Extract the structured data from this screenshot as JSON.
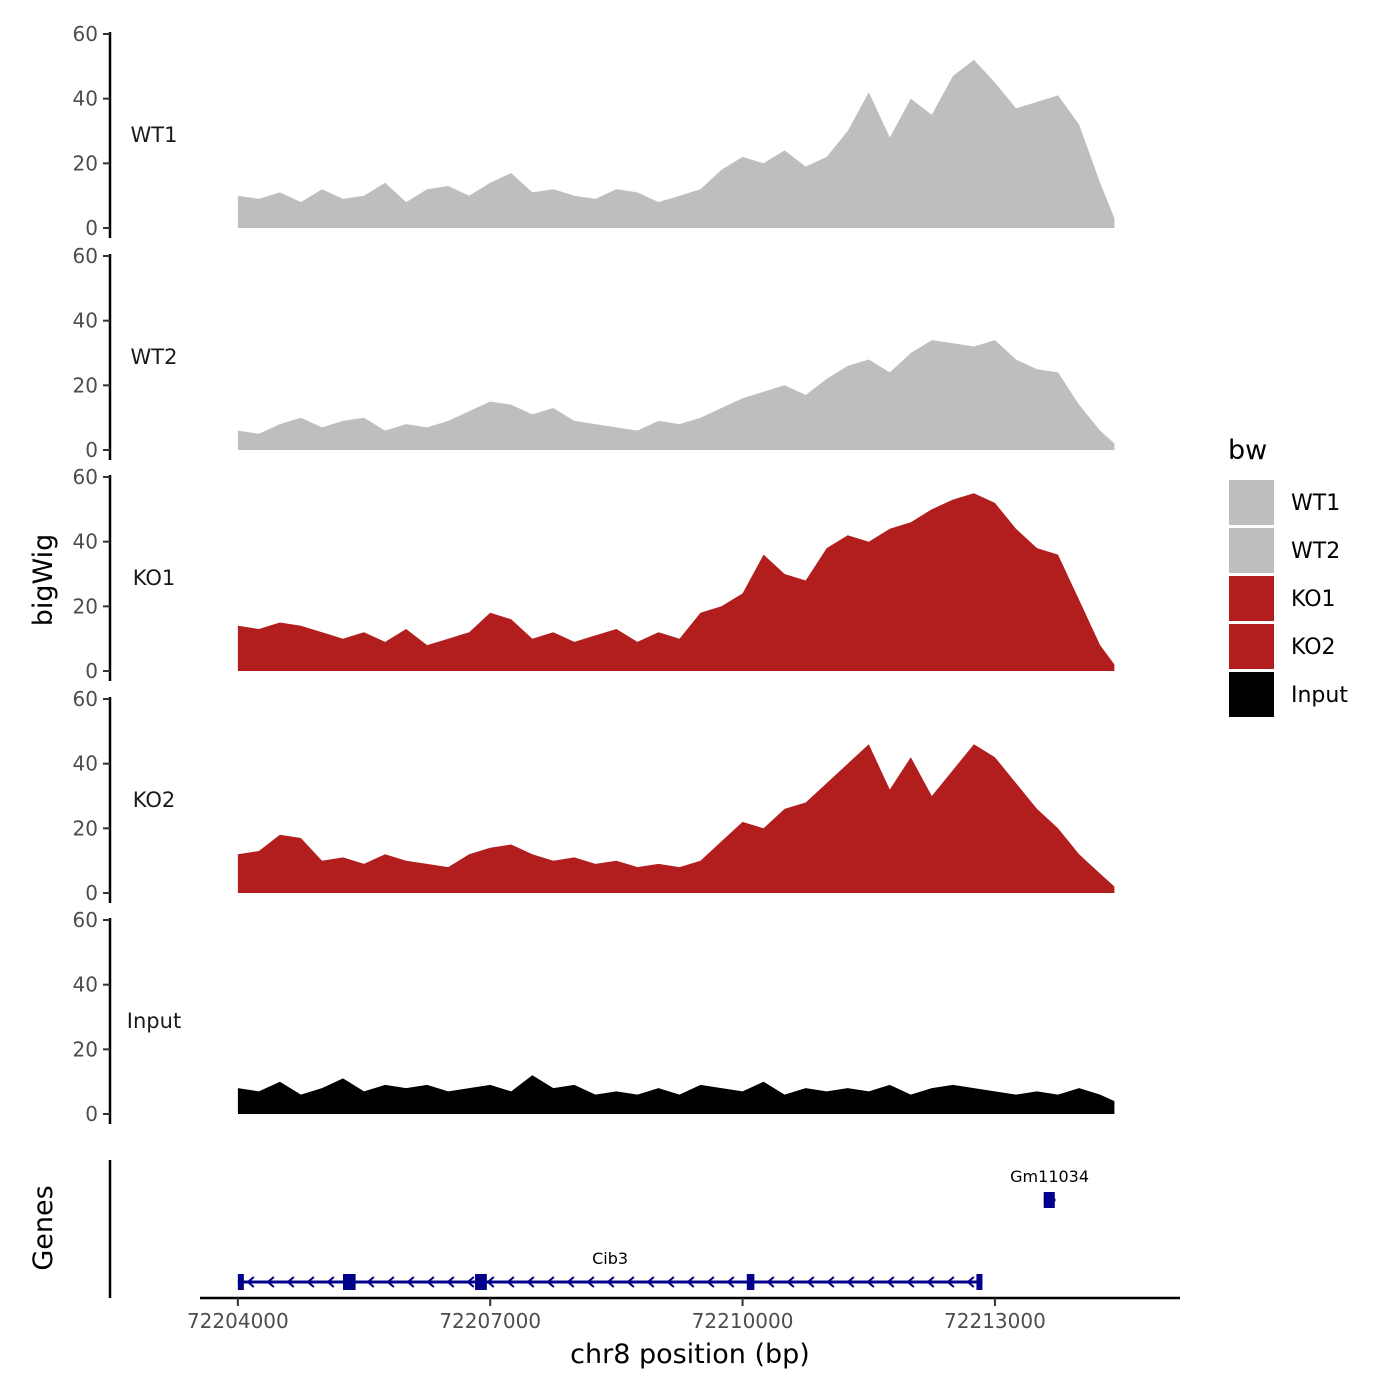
{
  "chart_data": {
    "type": "area",
    "y_axis_title": "bigWig",
    "x_axis_title": "chr8 position (bp)",
    "x_ticks": [
      "72204000",
      "72207000",
      "72210000",
      "72213000"
    ],
    "x_tick_values": [
      72204000,
      72207000,
      72210000,
      72213000
    ],
    "xlim": [
      72203550,
      72215200
    ],
    "ylim": [
      0,
      60
    ],
    "y_ticks": [
      "0",
      "20",
      "40",
      "60"
    ],
    "y_tick_values": [
      0,
      20,
      40,
      60
    ],
    "legend": {
      "title": "bw",
      "position": "right",
      "entries": [
        {
          "label": "WT1",
          "color": "#bebebe"
        },
        {
          "label": "WT2",
          "color": "#bebebe"
        },
        {
          "label": "KO1",
          "color": "#b21e1e"
        },
        {
          "label": "KO2",
          "color": "#b21e1e"
        },
        {
          "label": "Input",
          "color": "#000000"
        }
      ]
    },
    "series": [
      {
        "name": "WT1",
        "color": "#bebebe",
        "x": [
          72204000,
          72204250,
          72204500,
          72204750,
          72205000,
          72205250,
          72205500,
          72205750,
          72206000,
          72206250,
          72206500,
          72206750,
          72207000,
          72207250,
          72207500,
          72207750,
          72208000,
          72208250,
          72208500,
          72208750,
          72209000,
          72209250,
          72209500,
          72209750,
          72210000,
          72210250,
          72210500,
          72210750,
          72211000,
          72211250,
          72211500,
          72211750,
          72212000,
          72212250,
          72212500,
          72212750,
          72213000,
          72213250,
          72213500,
          72213750,
          72214000,
          72214250,
          72214420
        ],
        "y": [
          10,
          9,
          11,
          8,
          12,
          9,
          10,
          14,
          8,
          12,
          13,
          10,
          14,
          17,
          11,
          12,
          10,
          9,
          12,
          11,
          8,
          10,
          12,
          18,
          22,
          20,
          24,
          19,
          22,
          30,
          42,
          28,
          40,
          35,
          47,
          52,
          45,
          37,
          39,
          41,
          32,
          14,
          3
        ]
      },
      {
        "name": "WT2",
        "color": "#bebebe",
        "x": [
          72204000,
          72204250,
          72204500,
          72204750,
          72205000,
          72205250,
          72205500,
          72205750,
          72206000,
          72206250,
          72206500,
          72206750,
          72207000,
          72207250,
          72207500,
          72207750,
          72208000,
          72208250,
          72208500,
          72208750,
          72209000,
          72209250,
          72209500,
          72209750,
          72210000,
          72210250,
          72210500,
          72210750,
          72211000,
          72211250,
          72211500,
          72211750,
          72212000,
          72212250,
          72212500,
          72212750,
          72213000,
          72213250,
          72213500,
          72213750,
          72214000,
          72214250,
          72214420
        ],
        "y": [
          6,
          5,
          8,
          10,
          7,
          9,
          10,
          6,
          8,
          7,
          9,
          12,
          15,
          14,
          11,
          13,
          9,
          8,
          7,
          6,
          9,
          8,
          10,
          13,
          16,
          18,
          20,
          17,
          22,
          26,
          28,
          24,
          30,
          34,
          33,
          32,
          34,
          28,
          25,
          24,
          14,
          6,
          2
        ]
      },
      {
        "name": "KO1",
        "color": "#b21e1e",
        "x": [
          72204000,
          72204250,
          72204500,
          72204750,
          72205000,
          72205250,
          72205500,
          72205750,
          72206000,
          72206250,
          72206500,
          72206750,
          72207000,
          72207250,
          72207500,
          72207750,
          72208000,
          72208250,
          72208500,
          72208750,
          72209000,
          72209250,
          72209500,
          72209750,
          72210000,
          72210250,
          72210500,
          72210750,
          72211000,
          72211250,
          72211500,
          72211750,
          72212000,
          72212250,
          72212500,
          72212750,
          72213000,
          72213250,
          72213500,
          72213750,
          72214000,
          72214250,
          72214420
        ],
        "y": [
          14,
          13,
          15,
          14,
          12,
          10,
          12,
          9,
          13,
          8,
          10,
          12,
          18,
          16,
          10,
          12,
          9,
          11,
          13,
          9,
          12,
          10,
          18,
          20,
          24,
          36,
          30,
          28,
          38,
          42,
          40,
          44,
          46,
          50,
          53,
          55,
          52,
          44,
          38,
          36,
          22,
          8,
          2
        ]
      },
      {
        "name": "KO2",
        "color": "#b21e1e",
        "x": [
          72204000,
          72204250,
          72204500,
          72204750,
          72205000,
          72205250,
          72205500,
          72205750,
          72206000,
          72206250,
          72206500,
          72206750,
          72207000,
          72207250,
          72207500,
          72207750,
          72208000,
          72208250,
          72208500,
          72208750,
          72209000,
          72209250,
          72209500,
          72209750,
          72210000,
          72210250,
          72210500,
          72210750,
          72211000,
          72211250,
          72211500,
          72211750,
          72212000,
          72212250,
          72212500,
          72212750,
          72213000,
          72213250,
          72213500,
          72213750,
          72214000,
          72214250,
          72214420
        ],
        "y": [
          12,
          13,
          18,
          17,
          10,
          11,
          9,
          12,
          10,
          9,
          8,
          12,
          14,
          15,
          12,
          10,
          11,
          9,
          10,
          8,
          9,
          8,
          10,
          16,
          22,
          20,
          26,
          28,
          34,
          40,
          46,
          32,
          42,
          30,
          38,
          46,
          42,
          34,
          26,
          20,
          12,
          6,
          2
        ]
      },
      {
        "name": "Input",
        "color": "#000000",
        "x": [
          72204000,
          72204250,
          72204500,
          72204750,
          72205000,
          72205250,
          72205500,
          72205750,
          72206000,
          72206250,
          72206500,
          72206750,
          72207000,
          72207250,
          72207500,
          72207750,
          72208000,
          72208250,
          72208500,
          72208750,
          72209000,
          72209250,
          72209500,
          72209750,
          72210000,
          72210250,
          72210500,
          72210750,
          72211000,
          72211250,
          72211500,
          72211750,
          72212000,
          72212250,
          72212500,
          72212750,
          72213000,
          72213250,
          72213500,
          72213750,
          72214000,
          72214250,
          72214420
        ],
        "y": [
          8,
          7,
          10,
          6,
          8,
          11,
          7,
          9,
          8,
          9,
          7,
          8,
          9,
          7,
          12,
          8,
          9,
          6,
          7,
          6,
          8,
          6,
          9,
          8,
          7,
          10,
          6,
          8,
          7,
          8,
          7,
          9,
          6,
          8,
          9,
          8,
          7,
          6,
          7,
          6,
          8,
          6,
          4
        ]
      }
    ],
    "genes": [
      {
        "name": "Cib3",
        "start": 72204000,
        "end": 72212850,
        "strand": "-",
        "exons": [
          [
            72204000,
            72204070
          ],
          [
            72205250,
            72205400
          ],
          [
            72206820,
            72206960
          ],
          [
            72210050,
            72210140
          ],
          [
            72212780,
            72212850
          ]
        ]
      },
      {
        "name": "Gm11034",
        "start": 72213580,
        "end": 72213720,
        "strand": "-",
        "exons": [
          [
            72213580,
            72213620
          ],
          [
            72213640,
            72213680
          ]
        ]
      }
    ],
    "genes_track_title": "Genes"
  }
}
